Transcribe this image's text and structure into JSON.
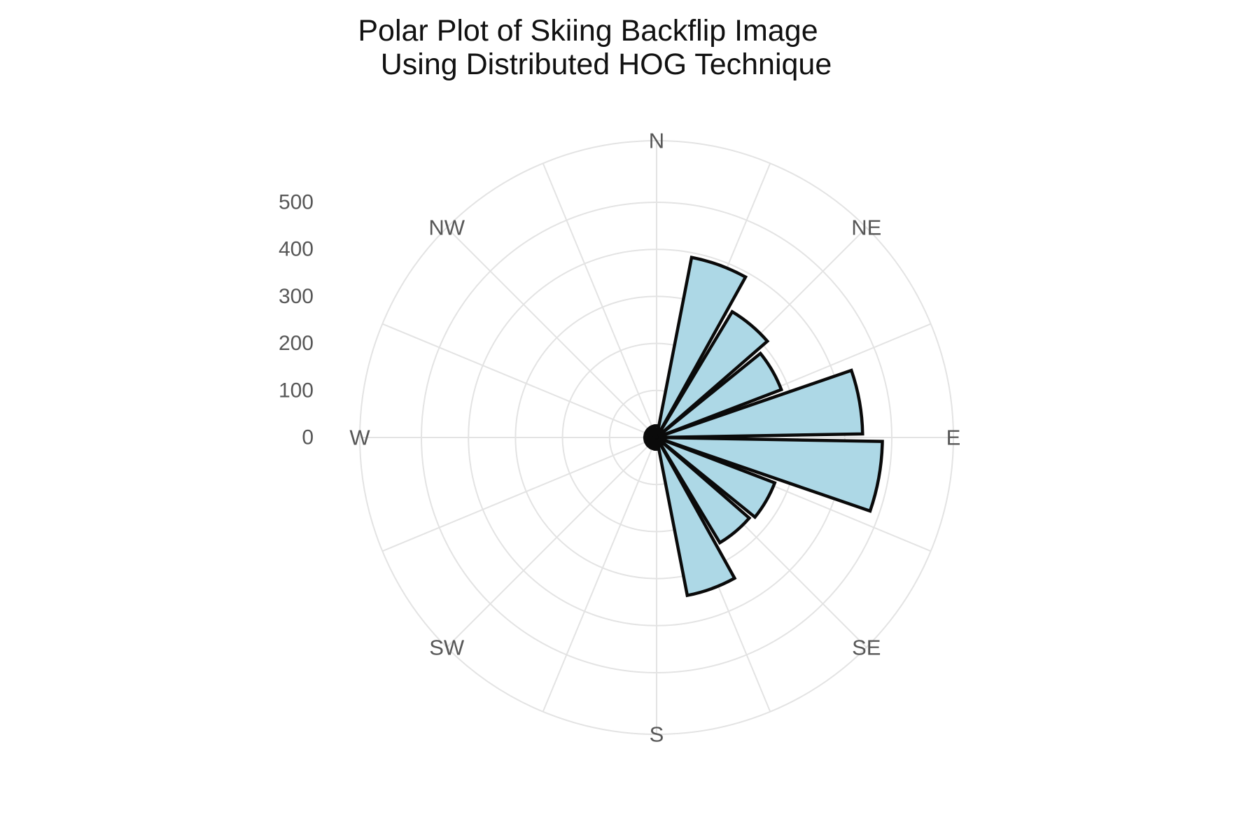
{
  "chart_data": {
    "type": "bar",
    "subtype": "polar-rose-histogram",
    "title": "Polar Plot of Skiing Backflip Image Using Distributed HOG Technique",
    "title_lines": [
      "Polar Plot of Skiing Backflip Image",
      "Using Distributed HOG Technique"
    ],
    "theta_labels": [
      "N",
      "NE",
      "E",
      "SE",
      "S",
      "SW",
      "W",
      "NW"
    ],
    "rticks": [
      0,
      100,
      200,
      300,
      400,
      500
    ],
    "rtick_labels": [
      "0",
      "100",
      "200",
      "300",
      "400",
      "500"
    ],
    "r_axis_max_units": 631,
    "grid_on": true,
    "spoke_step_deg": 22.5,
    "bin_width_deg": 18,
    "directions_deg": [
      0,
      20,
      40,
      60,
      80,
      100,
      120,
      140,
      160,
      180,
      200,
      220,
      240,
      260,
      280,
      300,
      320,
      340
    ],
    "values": [
      25,
      390,
      312,
      284,
      438,
      480,
      269,
      261,
      342,
      25,
      25,
      25,
      25,
      25,
      25,
      25,
      25,
      25
    ],
    "colors": {
      "petal_fill": "#ADD8E6",
      "petal_stroke": "#0a0a0a",
      "grid": "#e3e3e3",
      "axis_label": "#575757",
      "title": "#111111",
      "background": "#ffffff"
    }
  }
}
